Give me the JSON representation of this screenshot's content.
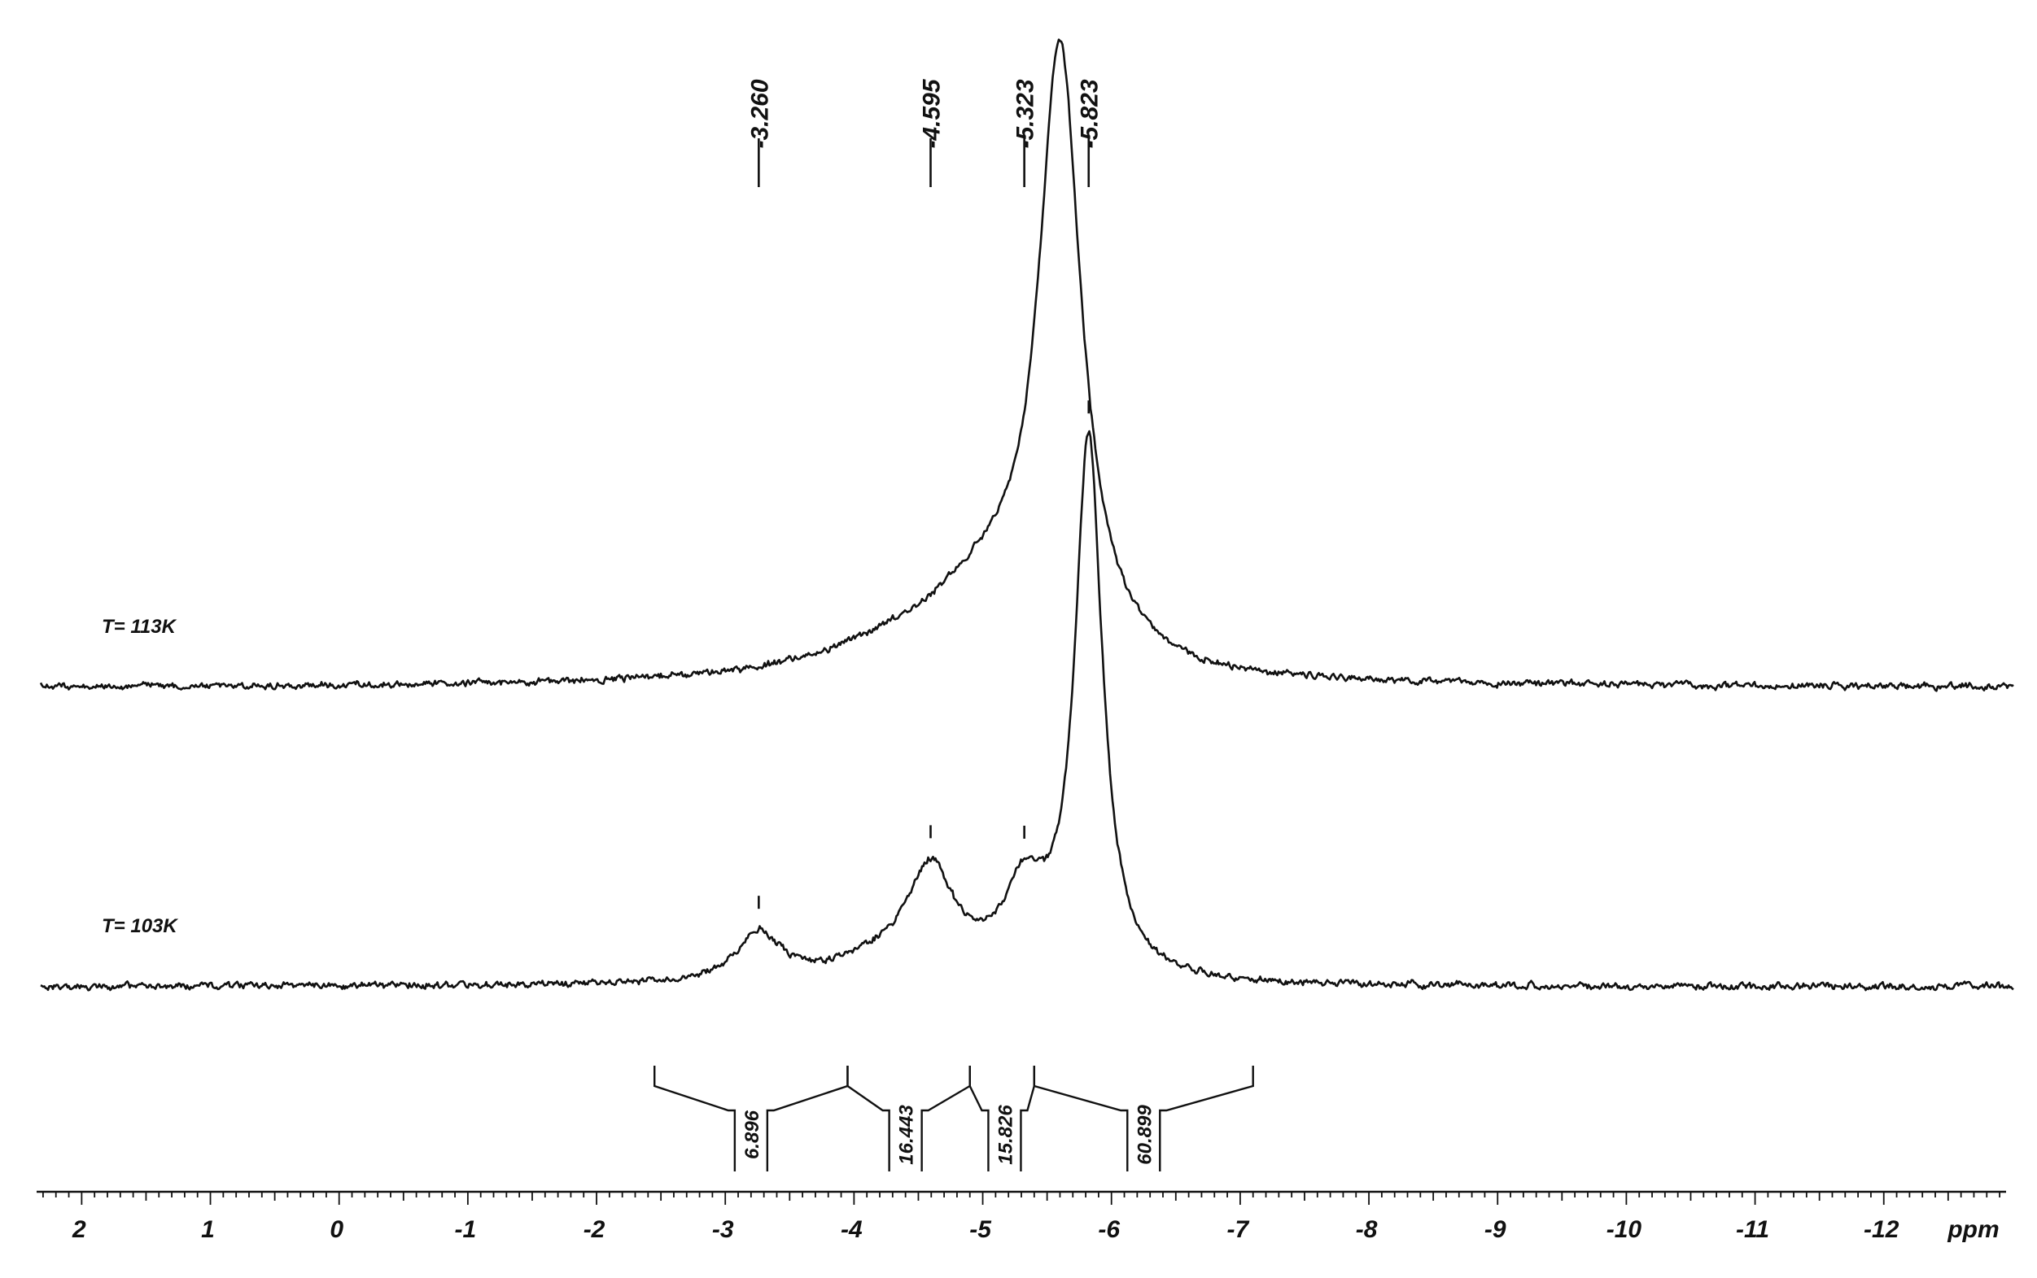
{
  "chart_data": {
    "type": "line",
    "title": "",
    "xlabel": "ppm",
    "ylabel": "",
    "x_unit": "ppm",
    "xlim": [
      2.35,
      -12.95
    ],
    "x_ticks": [
      "2",
      "1",
      "0",
      "-1",
      "-2",
      "-3",
      "-4",
      "-5",
      "-6",
      "-7",
      "-8",
      "-9",
      "-10",
      "-11",
      "-12"
    ],
    "x_tick_values": [
      2,
      1,
      0,
      -1,
      -2,
      -3,
      -4,
      -5,
      -6,
      -7,
      -8,
      -9,
      -10,
      -11,
      -12
    ],
    "grid": false,
    "color": "#111111",
    "peak_labels": [
      "-3.260",
      "-4.595",
      "-5.323",
      "-5.823"
    ],
    "peak_positions": [
      -3.26,
      -4.595,
      -5.323,
      -5.823
    ],
    "series": [
      {
        "name": "T= 113K",
        "peaks": [
          {
            "center": -5.6,
            "height": 0.74,
            "hwhm": 0.2
          },
          {
            "center": -5.05,
            "height": 0.09,
            "hwhm": 0.55
          },
          {
            "center": -4.4,
            "height": 0.035,
            "hwhm": 0.9
          }
        ]
      },
      {
        "name": "T= 103K",
        "peaks": [
          {
            "center": -3.26,
            "height": 0.06,
            "hwhm": 0.2
          },
          {
            "center": -4.595,
            "height": 0.125,
            "hwhm": 0.22
          },
          {
            "center": -5.323,
            "height": 0.1,
            "hwhm": 0.2
          },
          {
            "center": -5.823,
            "height": 0.66,
            "hwhm": 0.13
          },
          {
            "center": -4.25,
            "height": 0.025,
            "hwhm": 0.55
          }
        ],
        "marked_peaks": [
          -3.26,
          -4.595,
          -5.323,
          -5.823
        ]
      }
    ],
    "integrals": [
      {
        "from": -2.45,
        "to": -3.95,
        "value": "6.896",
        "position": -3.2
      },
      {
        "from": -3.95,
        "to": -4.9,
        "value": "16.443",
        "position": -4.4
      },
      {
        "from": -4.9,
        "to": -5.4,
        "value": "15.826",
        "position": -5.17
      },
      {
        "from": -5.4,
        "to": -7.1,
        "value": "60.899",
        "position": -6.25
      }
    ]
  }
}
